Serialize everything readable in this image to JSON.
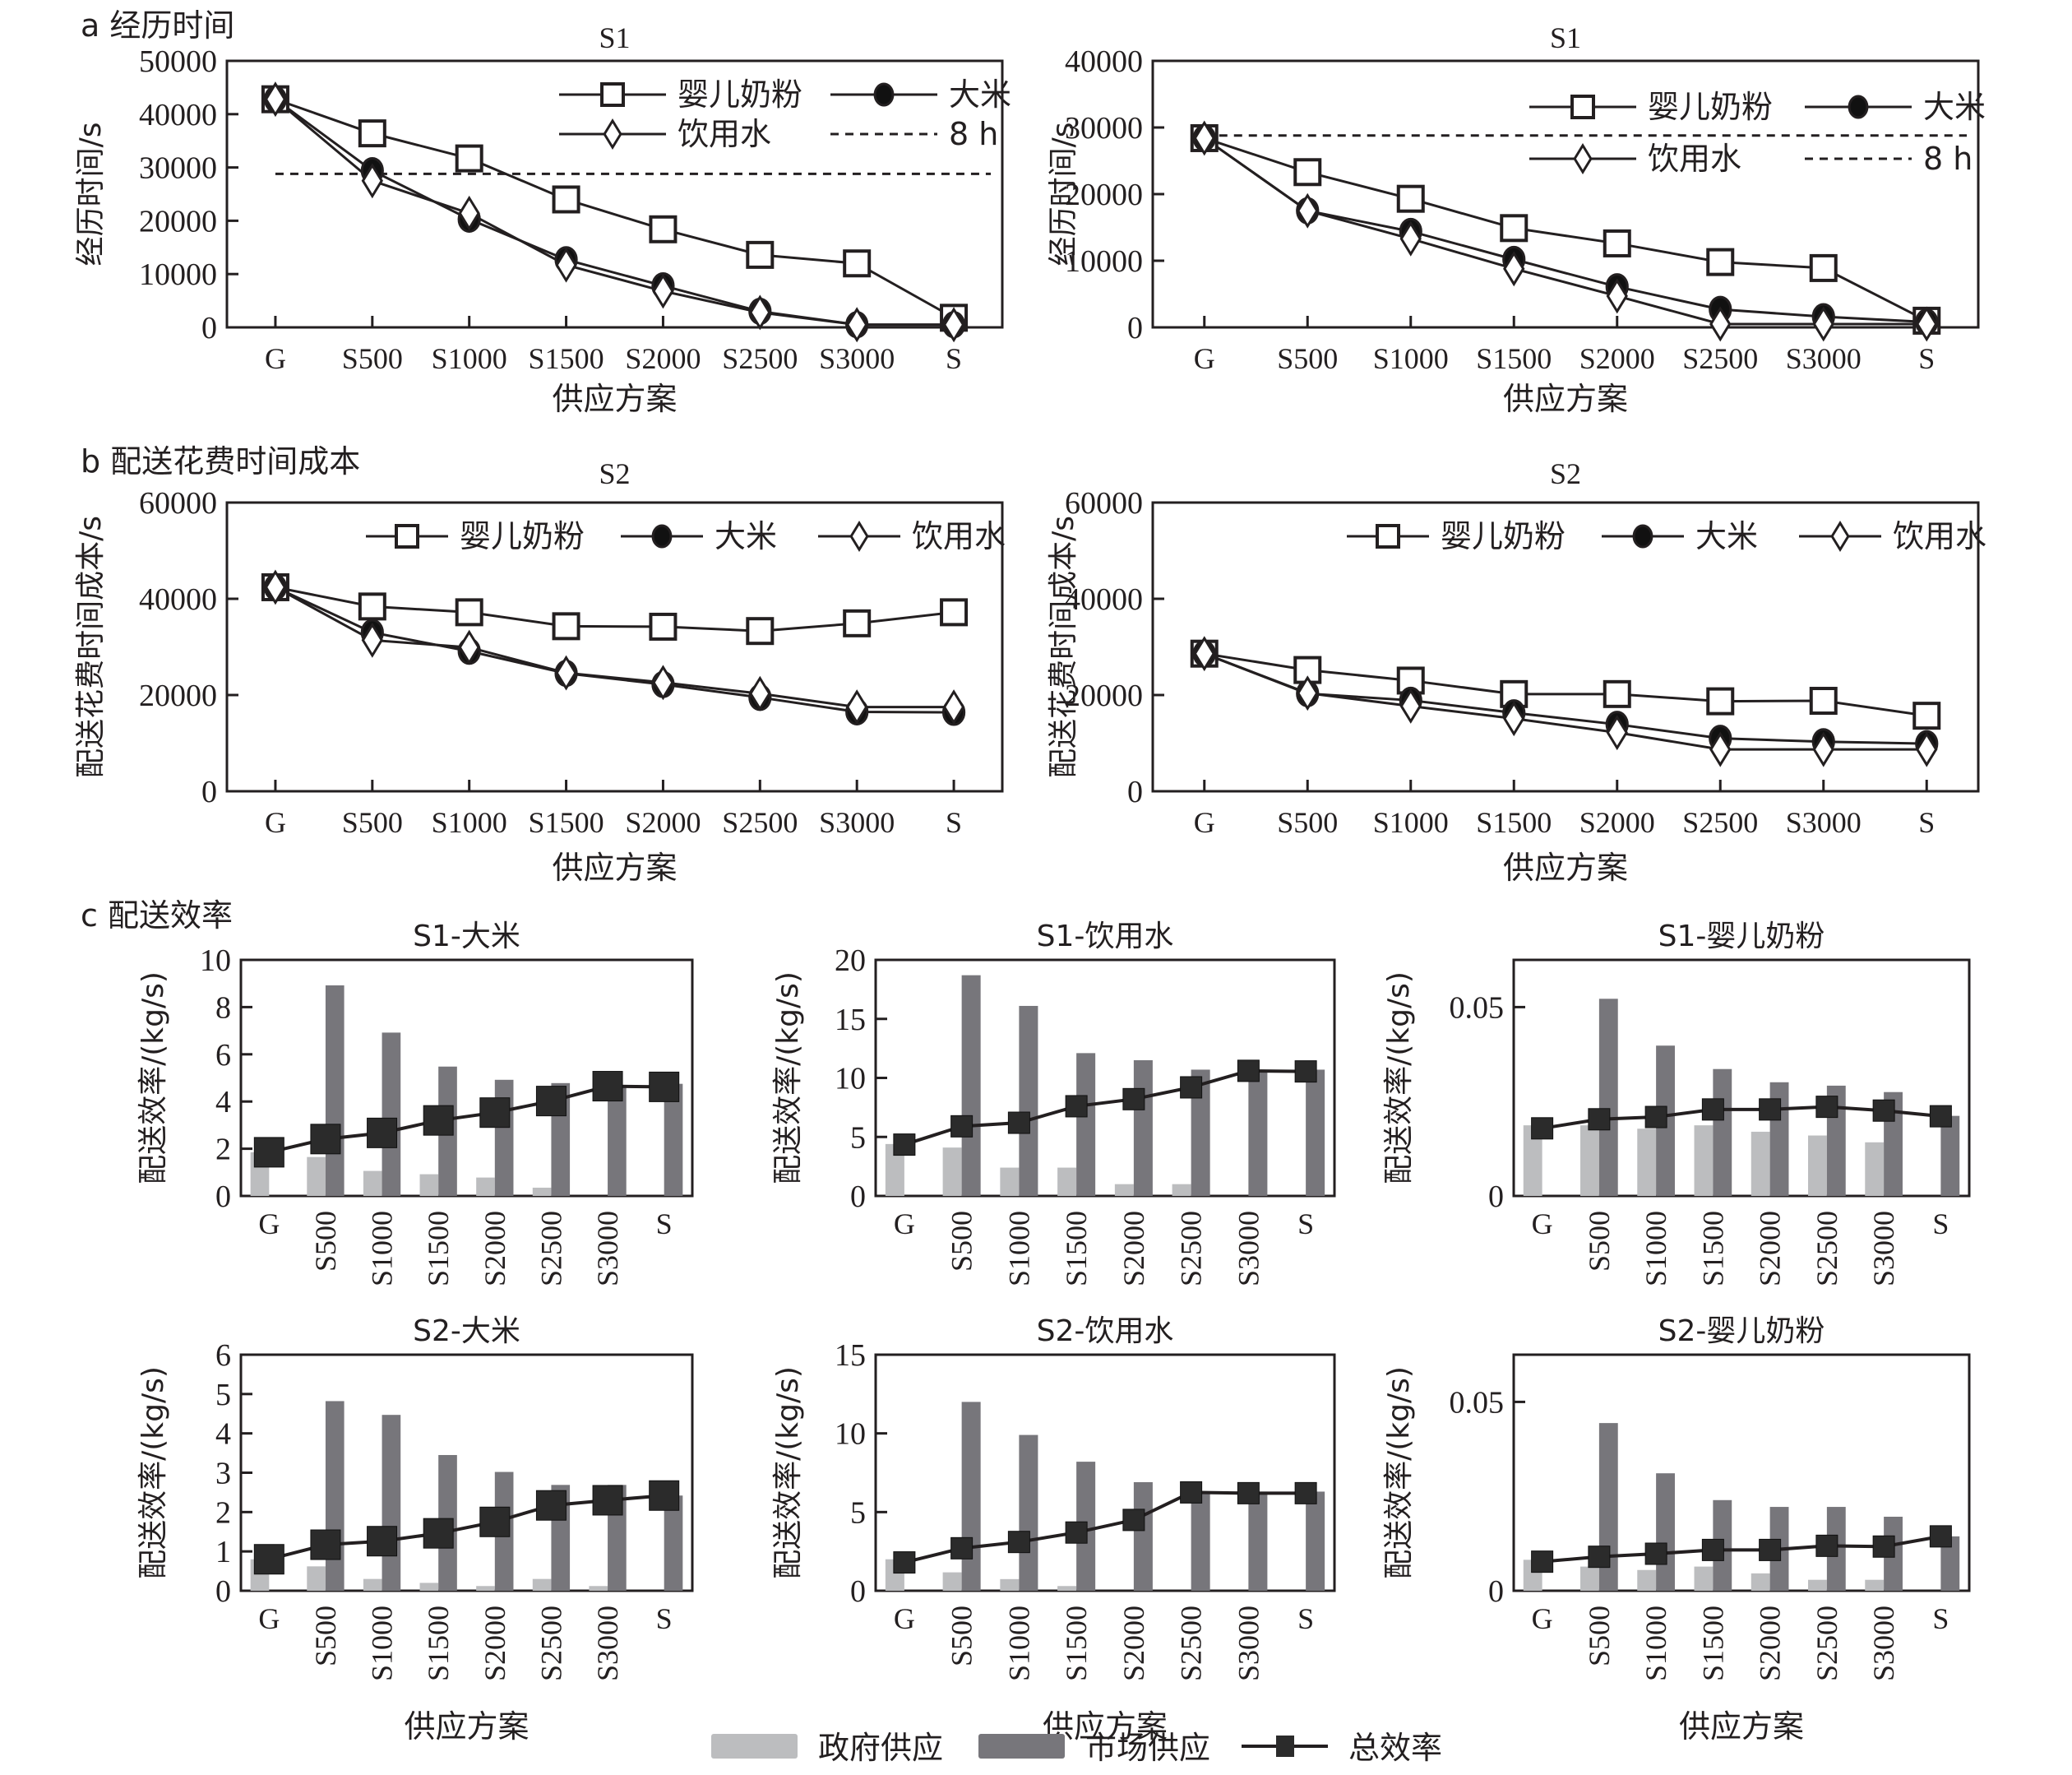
{
  "figure": {
    "sections": [
      {
        "id": "a",
        "label": "a 经历时间"
      },
      {
        "id": "b",
        "label": "b 配送花费时间成本"
      },
      {
        "id": "c",
        "label": "c 配送效率"
      }
    ],
    "colors": {
      "axis": "#231f20",
      "government_bar": "#bcbdbf",
      "market_bar": "#77767b",
      "total_line": "#231f20",
      "total_marker": "#2b2b2b"
    },
    "bar_legend": [
      {
        "key": "gov",
        "label": "政府供应",
        "symbol": "light-gray-bar"
      },
      {
        "key": "market",
        "label": "市场供应",
        "symbol": "dark-gray-bar"
      },
      {
        "key": "total",
        "label": "总效率",
        "symbol": "line-with-filled-square"
      }
    ]
  },
  "chart_data": [
    {
      "id": "a-left",
      "section": "a",
      "type": "line",
      "title": "S1",
      "xlabel": "供应方案",
      "ylabel": "经历时间/s",
      "categories": [
        "G",
        "S500",
        "S1000",
        "S1500",
        "S2000",
        "S2500",
        "S3000",
        "S"
      ],
      "ylim": [
        0,
        50000
      ],
      "yticks": [
        0,
        10000,
        20000,
        30000,
        40000,
        50000
      ],
      "grid": false,
      "legend_position": "top-right",
      "legend_columns": 2,
      "series": [
        {
          "name": "婴儿奶粉",
          "marker": "open-square",
          "values": [
            42800,
            36400,
            31700,
            24000,
            18400,
            13600,
            12000,
            1800
          ]
        },
        {
          "name": "大米",
          "marker": "filled-circle",
          "values": [
            42800,
            29400,
            20300,
            12700,
            7800,
            3000,
            500,
            500
          ]
        },
        {
          "name": "饮用水",
          "marker": "open-diamond",
          "values": [
            42800,
            27500,
            21400,
            11700,
            6800,
            2800,
            500,
            500
          ]
        }
      ],
      "reference_line": {
        "name": "8 h",
        "value": 28800,
        "style": "dashed"
      }
    },
    {
      "id": "a-right",
      "section": "a",
      "type": "line",
      "title": "S1",
      "xlabel": "供应方案",
      "ylabel": "经历时间/s",
      "categories": [
        "G",
        "S500",
        "S1000",
        "S1500",
        "S2000",
        "S2500",
        "S3000",
        "S"
      ],
      "ylim": [
        0,
        40000
      ],
      "yticks": [
        0,
        10000,
        20000,
        30000,
        40000
      ],
      "grid": false,
      "legend_position": "top-right",
      "legend_columns": 2,
      "series": [
        {
          "name": "婴儿奶粉",
          "marker": "open-square",
          "values": [
            28400,
            23300,
            19300,
            14900,
            12600,
            9800,
            8900,
            1000
          ]
        },
        {
          "name": "大米",
          "marker": "filled-circle",
          "values": [
            28400,
            17500,
            14400,
            10200,
            6100,
            2700,
            1600,
            800
          ]
        },
        {
          "name": "饮用水",
          "marker": "open-diamond",
          "values": [
            28400,
            17500,
            13300,
            8800,
            4700,
            500,
            500,
            500
          ]
        }
      ],
      "reference_line": {
        "name": "8 h",
        "value": 28800,
        "style": "dashed"
      }
    },
    {
      "id": "b-left",
      "section": "b",
      "type": "line",
      "title": "S2",
      "xlabel": "供应方案",
      "ylabel": "配送花费时间成本/s",
      "categories": [
        "G",
        "S500",
        "S1000",
        "S1500",
        "S2000",
        "S2500",
        "S3000",
        "S"
      ],
      "ylim": [
        0,
        60000
      ],
      "yticks": [
        0,
        20000,
        40000,
        60000
      ],
      "grid": false,
      "legend_position": "top-right",
      "legend_columns": 3,
      "series": [
        {
          "name": "婴儿奶粉",
          "marker": "open-square",
          "values": [
            42400,
            38400,
            37200,
            34300,
            34200,
            33300,
            34900,
            37200
          ]
        },
        {
          "name": "大米",
          "marker": "filled-circle",
          "values": [
            42400,
            33000,
            29100,
            24500,
            22200,
            19500,
            16500,
            16400
          ]
        },
        {
          "name": "饮用水",
          "marker": "open-diamond",
          "values": [
            42400,
            31400,
            29900,
            24600,
            22600,
            20300,
            17500,
            17500
          ]
        }
      ]
    },
    {
      "id": "b-right",
      "section": "b",
      "type": "line",
      "title": "S2",
      "xlabel": "供应方案",
      "ylabel": "配送花费时间成本/s",
      "categories": [
        "G",
        "S500",
        "S1000",
        "S1500",
        "S2000",
        "S2500",
        "S3000",
        "S"
      ],
      "ylim": [
        0,
        60000
      ],
      "yticks": [
        0,
        20000,
        40000,
        60000
      ],
      "grid": false,
      "legend_position": "top-right",
      "legend_columns": 3,
      "series": [
        {
          "name": "婴儿奶粉",
          "marker": "open-square",
          "values": [
            28600,
            25200,
            23000,
            20200,
            20200,
            18700,
            18800,
            15700
          ]
        },
        {
          "name": "大米",
          "marker": "filled-circle",
          "values": [
            28600,
            20300,
            18900,
            16300,
            13900,
            11000,
            10300,
            9900
          ]
        },
        {
          "name": "饮用水",
          "marker": "open-diamond",
          "values": [
            28600,
            20400,
            17700,
            15100,
            12200,
            8700,
            8700,
            8700
          ]
        }
      ]
    },
    {
      "id": "c-s1-rice",
      "section": "c",
      "type": "bar",
      "title": "S1-大米",
      "xlabel": "",
      "ylabel": "配送效率/(kg/s)",
      "categories": [
        "G",
        "S500",
        "S1000",
        "S1500",
        "S2000",
        "S2500",
        "S3000",
        "S"
      ],
      "ylim": [
        0,
        10
      ],
      "yticks": [
        0,
        2,
        4,
        6,
        8,
        10
      ],
      "ytick_labels": [
        "0",
        "2",
        "4",
        "6",
        "8",
        "10"
      ],
      "grid": false,
      "series": [
        {
          "name": "政府供应",
          "kind": "bar",
          "values": [
            1.85,
            1.65,
            1.06,
            0.92,
            0.78,
            0.35,
            0,
            0
          ]
        },
        {
          "name": "市场供应",
          "kind": "bar",
          "values": [
            0,
            8.92,
            6.92,
            5.48,
            4.92,
            4.78,
            4.7,
            4.75
          ]
        },
        {
          "name": "总效率",
          "kind": "line",
          "values": [
            1.85,
            2.41,
            2.67,
            3.2,
            3.53,
            4.02,
            4.65,
            4.62
          ]
        }
      ]
    },
    {
      "id": "c-s1-water",
      "section": "c",
      "type": "bar",
      "title": "S1-饮用水",
      "xlabel": "",
      "ylabel": "配送效率/(kg/s)",
      "categories": [
        "G",
        "S500",
        "S1000",
        "S1500",
        "S2000",
        "S2500",
        "S3000",
        "S"
      ],
      "ylim": [
        0,
        20
      ],
      "yticks": [
        0,
        5,
        10,
        15,
        20
      ],
      "ytick_labels": [
        "0",
        "5",
        "10",
        "15",
        "20"
      ],
      "grid": false,
      "series": [
        {
          "name": "政府供应",
          "kind": "bar",
          "values": [
            4.4,
            4.1,
            2.4,
            2.4,
            1.0,
            1.0,
            0,
            0
          ]
        },
        {
          "name": "市场供应",
          "kind": "bar",
          "values": [
            0,
            18.7,
            16.1,
            12.1,
            11.5,
            10.7,
            10.6,
            10.7
          ]
        },
        {
          "name": "总效率",
          "kind": "line",
          "values": [
            4.35,
            5.9,
            6.2,
            7.6,
            8.2,
            9.2,
            10.6,
            10.55
          ]
        }
      ]
    },
    {
      "id": "c-s1-formula",
      "section": "c",
      "type": "bar",
      "title": "S1-婴儿奶粉",
      "xlabel": "",
      "ylabel": "配送效率/(kg/s)",
      "categories": [
        "G",
        "S500",
        "S1000",
        "S1500",
        "S2000",
        "S2500",
        "S3000",
        "S"
      ],
      "ylim": [
        0,
        0.0625
      ],
      "yticks": [
        0,
        0.05
      ],
      "ytick_labels": [
        "0",
        "0.05"
      ],
      "grid": false,
      "series": [
        {
          "name": "政府供应",
          "kind": "bar",
          "values": [
            0.0187,
            0.0187,
            0.0178,
            0.0187,
            0.017,
            0.016,
            0.0142,
            0
          ]
        },
        {
          "name": "市场供应",
          "kind": "bar",
          "values": [
            0,
            0.0522,
            0.0398,
            0.0336,
            0.0301,
            0.0292,
            0.0275,
            0.0212
          ]
        },
        {
          "name": "总效率",
          "kind": "line",
          "values": [
            0.0179,
            0.0203,
            0.0209,
            0.0229,
            0.0229,
            0.0236,
            0.0226,
            0.0211
          ]
        }
      ]
    },
    {
      "id": "c-s2-rice",
      "section": "c",
      "type": "bar",
      "title": "S2-大米",
      "xlabel": "供应方案",
      "ylabel": "配送效率/(kg/s)",
      "categories": [
        "G",
        "S500",
        "S1000",
        "S1500",
        "S2000",
        "S2500",
        "S3000",
        "S"
      ],
      "ylim": [
        0,
        6
      ],
      "yticks": [
        0,
        1,
        2,
        3,
        4,
        5,
        6
      ],
      "ytick_labels": [
        "0",
        "1",
        "2",
        "3",
        "4",
        "5",
        "6"
      ],
      "grid": false,
      "series": [
        {
          "name": "政府供应",
          "kind": "bar",
          "values": [
            0.8,
            0.62,
            0.3,
            0.2,
            0.12,
            0.3,
            0.12,
            0
          ]
        },
        {
          "name": "市场供应",
          "kind": "bar",
          "values": [
            0,
            4.82,
            4.47,
            3.45,
            3.02,
            2.69,
            2.69,
            2.42
          ]
        },
        {
          "name": "总效率",
          "kind": "line",
          "values": [
            0.8,
            1.17,
            1.26,
            1.46,
            1.75,
            2.17,
            2.3,
            2.42
          ]
        }
      ]
    },
    {
      "id": "c-s2-water",
      "section": "c",
      "type": "bar",
      "title": "S2-饮用水",
      "xlabel": "供应方案",
      "ylabel": "配送效率/(kg/s)",
      "categories": [
        "G",
        "S500",
        "S1000",
        "S1500",
        "S2000",
        "S2500",
        "S3000",
        "S"
      ],
      "ylim": [
        0,
        15
      ],
      "yticks": [
        0,
        5,
        10,
        15
      ],
      "ytick_labels": [
        "0",
        "5",
        "10",
        "15"
      ],
      "grid": false,
      "series": [
        {
          "name": "政府供应",
          "kind": "bar",
          "values": [
            2.0,
            1.17,
            0.74,
            0.3,
            0,
            0,
            0,
            0
          ]
        },
        {
          "name": "市场供应",
          "kind": "bar",
          "values": [
            0,
            12.0,
            9.9,
            8.2,
            6.9,
            6.3,
            6.3,
            6.3
          ]
        },
        {
          "name": "总效率",
          "kind": "line",
          "values": [
            1.8,
            2.7,
            3.1,
            3.7,
            4.5,
            6.25,
            6.2,
            6.2
          ]
        }
      ]
    },
    {
      "id": "c-s2-formula",
      "section": "c",
      "type": "bar",
      "title": "S2-婴儿奶粉",
      "xlabel": "供应方案",
      "ylabel": "配送效率/(kg/s)",
      "categories": [
        "G",
        "S500",
        "S1000",
        "S1500",
        "S2000",
        "S2500",
        "S3000",
        "S"
      ],
      "ylim": [
        0,
        0.0625
      ],
      "yticks": [
        0,
        0.05
      ],
      "ytick_labels": [
        "0",
        "0.05"
      ],
      "grid": false,
      "series": [
        {
          "name": "政府供应",
          "kind": "bar",
          "values": [
            0.0082,
            0.0064,
            0.0055,
            0.0064,
            0.0046,
            0.0029,
            0.0029,
            0
          ]
        },
        {
          "name": "市场供应",
          "kind": "bar",
          "values": [
            0,
            0.0444,
            0.0311,
            0.024,
            0.0222,
            0.0222,
            0.0196,
            0.0144
          ]
        },
        {
          "name": "总效率",
          "kind": "line",
          "values": [
            0.0077,
            0.009,
            0.0098,
            0.0108,
            0.0108,
            0.0119,
            0.0117,
            0.0144
          ]
        }
      ]
    }
  ]
}
